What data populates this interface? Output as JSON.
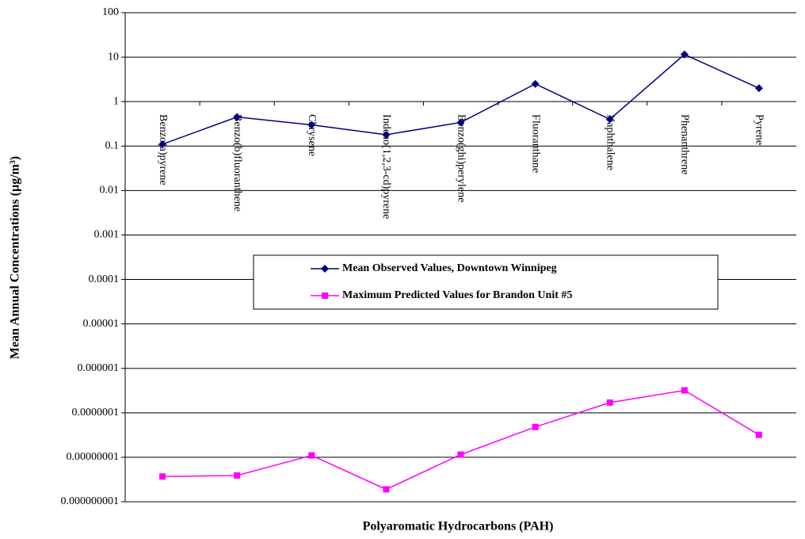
{
  "chart_data": {
    "type": "line",
    "x_label": "Polyaromatic Hydrocarbons (PAH)",
    "y_label": "Mean Annual Concentrations (µg/m³)",
    "categories": [
      "Benzo(a)pyrene",
      "Benzo(b)fluoranthene",
      "Chrysene",
      "Indeno(1,2,3-cd)pyrene",
      "Benzo(ghi)perylene",
      "Fluoranthane",
      "Naphthalene",
      "Phenanthrene",
      "Pyrene"
    ],
    "series": [
      {
        "name": "Mean Observed Values, Downtown Winnipeg",
        "color": "#000080",
        "marker": "diamond",
        "values": [
          0.11,
          0.45,
          0.3,
          0.18,
          0.34,
          2.5,
          0.4,
          11.5,
          2.0
        ]
      },
      {
        "name": "Maximum Predicted Values for Brandon Unit #5",
        "color": "#ff00ff",
        "marker": "square",
        "values": [
          3.7e-09,
          3.9e-09,
          1.1e-08,
          1.9e-09,
          1.15e-08,
          4.8e-08,
          1.7e-07,
          3.2e-07,
          3.2e-08
        ]
      }
    ],
    "log_y": true,
    "ylim": [
      1e-09,
      100
    ],
    "yticks": [
      100,
      10,
      1,
      0.1,
      0.01,
      0.001,
      0.0001,
      1e-05,
      1e-06,
      {
        "value": 1e-07,
        "label": "0.0000001"
      },
      {
        "value": 1e-08,
        "label": "0.00000001"
      },
      {
        "value": 1e-09,
        "label": "0.000000001"
      }
    ],
    "grid": true
  }
}
